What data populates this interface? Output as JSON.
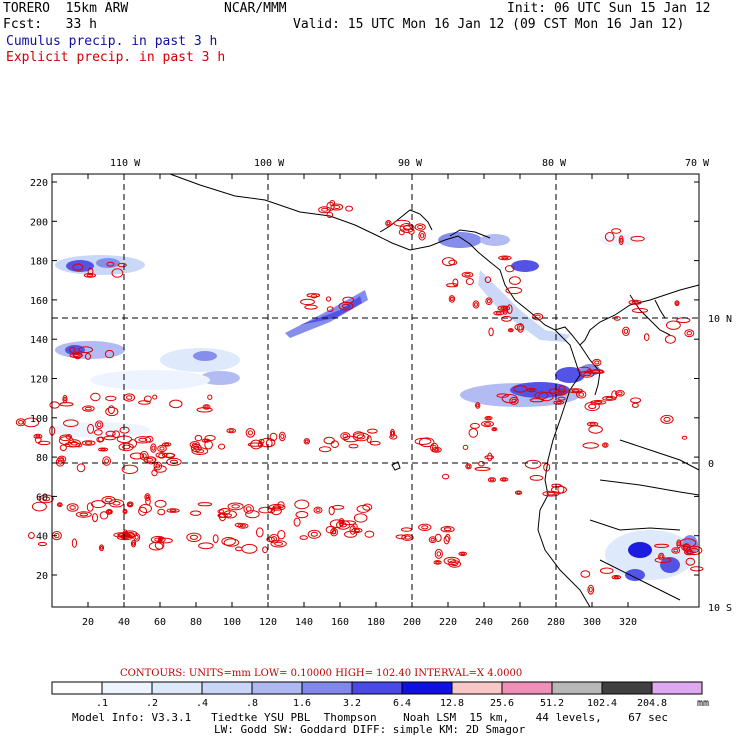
{
  "header": {
    "model": "TORERO  15km ARW",
    "org": "NCAR/MMM",
    "init": "Init: 06 UTC Sun 15 Jan 12",
    "fcst": "Fcst:   33 h",
    "valid": "Valid: 15 UTC Mon 16 Jan 12 (09 CST Mon 16 Jan 12)",
    "field1": "Cumulus precip. in past 3 h",
    "field2": "Explicit precip. in past 3 h",
    "field1_color": "#1010a0",
    "field2_color": "#d00000"
  },
  "map": {
    "lon_labels": [
      "110 W",
      "100 W",
      "90 W",
      "80 W",
      "70 W"
    ],
    "lat_labels": [
      "10 N",
      "0",
      "10 S"
    ],
    "y_ticks": [
      "220",
      "200",
      "180",
      "160",
      "140",
      "120",
      "100",
      "80",
      "60",
      "40",
      "20"
    ],
    "x_ticks": [
      "20",
      "40",
      "60",
      "80",
      "100",
      "120",
      "140",
      "160",
      "180",
      "200",
      "220",
      "240",
      "260",
      "280",
      "300",
      "320"
    ]
  },
  "legend": {
    "contours_text": "CONTOURS:  UNITS=mm  LOW= 0.10000      HIGH=  102.40      INTERVAL=X  4.0000",
    "labels": [
      ".1",
      ".2",
      ".4",
      ".8",
      "1.6",
      "3.2",
      "6.4",
      "12.8",
      "25.6",
      "51.2",
      "102.4",
      "204.8"
    ],
    "unit": "mm",
    "colors": [
      "#ffffff",
      "#eef4ff",
      "#dde8fb",
      "#c8d6f7",
      "#aeb8f2",
      "#8088ec",
      "#4a4ae6",
      "#1010e0",
      "#f8c8c8",
      "#f090b8",
      "#b8b8b8",
      "#404040",
      "#e0a8f0"
    ]
  },
  "footer": {
    "line1": "Model Info: V3.3.1   Tiedtke YSU PBL  Thompson    Noah LSM  15 km,    44 levels,    67 sec",
    "line2": "LW: Godd SW: Goddard DIFF: simple KM: 2D Smagor"
  }
}
